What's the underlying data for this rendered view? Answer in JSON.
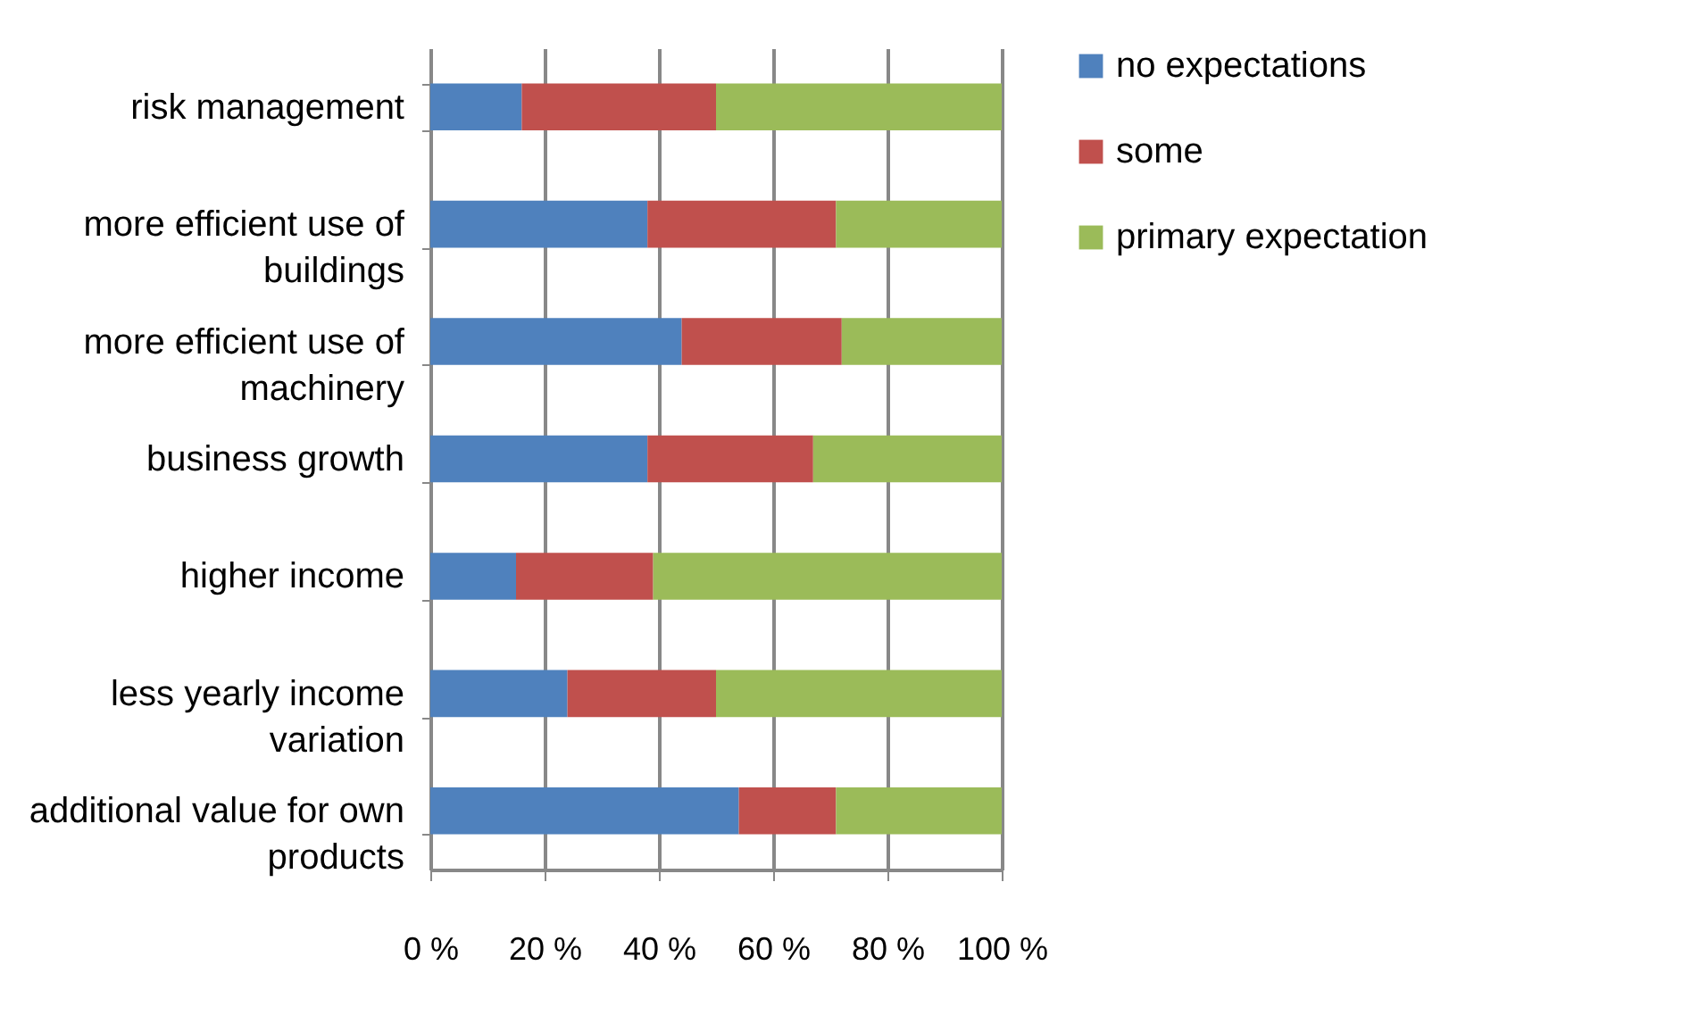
{
  "chart_data": {
    "type": "bar",
    "orientation": "horizontal",
    "stacked": true,
    "categories": [
      "risk management",
      "more efficient use of buildings",
      "more efficient use of machinery",
      "business growth",
      "higher income",
      "less yearly income variation",
      "additional value for own products"
    ],
    "series": [
      {
        "name": "no expectations",
        "color": "#4f81bd",
        "values": [
          16,
          38,
          44,
          38,
          15,
          24,
          54
        ]
      },
      {
        "name": "some",
        "color": "#c0504d",
        "values": [
          34,
          33,
          28,
          29,
          24,
          26,
          17
        ]
      },
      {
        "name": "primary expectation",
        "color": "#9bbb59",
        "values": [
          50,
          29,
          28,
          33,
          61,
          50,
          29
        ]
      }
    ],
    "xlim": [
      0,
      100
    ],
    "xticks": [
      {
        "value": 0,
        "label": "0 %"
      },
      {
        "value": 20,
        "label": "20 %"
      },
      {
        "value": 40,
        "label": "40 %"
      },
      {
        "value": 60,
        "label": "60 %"
      },
      {
        "value": 80,
        "label": "80 %"
      },
      {
        "value": 100,
        "label": "100 %"
      }
    ],
    "grid": "x",
    "legend": "right"
  }
}
